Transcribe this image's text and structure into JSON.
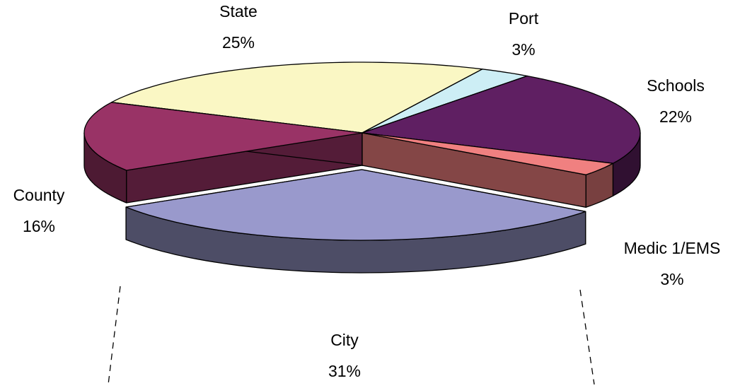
{
  "chart_data": {
    "type": "pie3d",
    "categories": [
      "State",
      "Port",
      "Schools",
      "Medic 1/EMS",
      "City",
      "County"
    ],
    "values": [
      25,
      3,
      22,
      3,
      31,
      16
    ],
    "value_labels": [
      "25%",
      "3%",
      "22%",
      "3%",
      "31%",
      "16%"
    ],
    "colors": [
      "#faf7c4",
      "#cdeef5",
      "#5f1f62",
      "#f08080",
      "#9999cc",
      "#993366"
    ],
    "exploded": "City"
  }
}
